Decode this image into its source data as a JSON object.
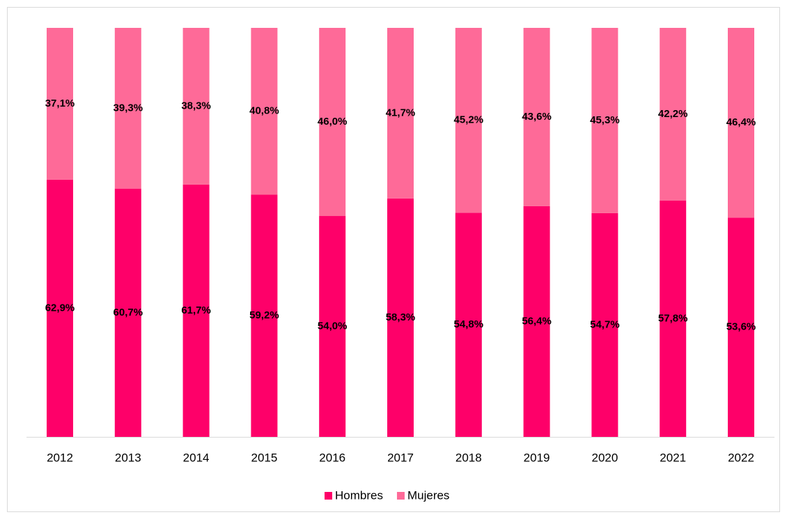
{
  "chart_data": {
    "type": "bar",
    "categories": [
      "2012",
      "2013",
      "2014",
      "2015",
      "2016",
      "2017",
      "2018",
      "2019",
      "2020",
      "2021",
      "2022"
    ],
    "series": [
      {
        "name": "Hombres",
        "color": "#fe0069",
        "values": [
          62.9,
          60.7,
          61.7,
          59.2,
          54.0,
          58.3,
          54.8,
          56.4,
          54.7,
          57.8,
          53.6
        ],
        "value_labels": [
          "62,9%",
          "60,7%",
          "61,7%",
          "59,2%",
          "54,0%",
          "58,3%",
          "54,8%",
          "56,4%",
          "54,7%",
          "57,8%",
          "53,6%"
        ]
      },
      {
        "name": "Mujeres",
        "color": "#fe6a98",
        "values": [
          37.1,
          39.3,
          38.3,
          40.8,
          46.0,
          41.7,
          45.2,
          43.6,
          45.3,
          42.2,
          46.4
        ],
        "value_labels": [
          "37,1%",
          "39,3%",
          "38,3%",
          "40,8%",
          "46,0%",
          "41,7%",
          "45,2%",
          "43,6%",
          "45,3%",
          "42,2%",
          "46,4%"
        ]
      }
    ]
  }
}
